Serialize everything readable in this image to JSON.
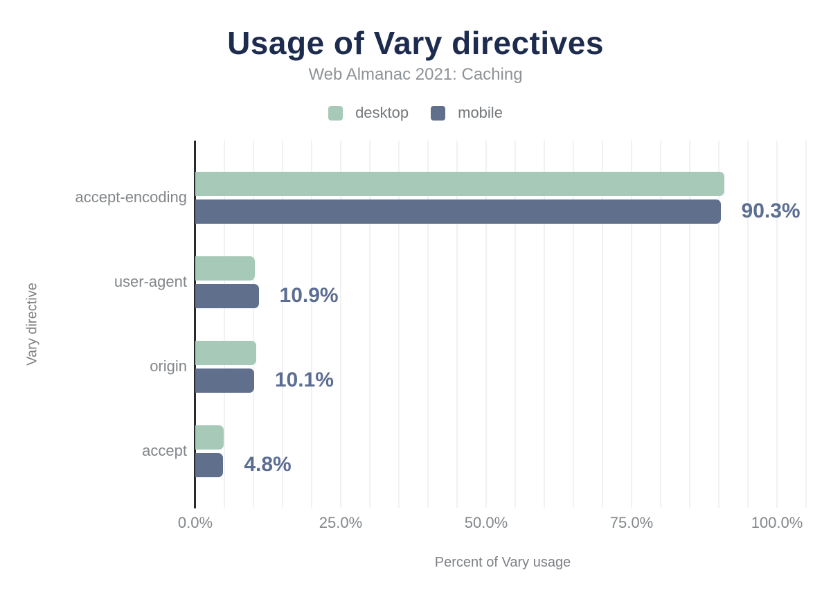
{
  "header": {
    "title": "Usage of Vary directives",
    "subtitle": "Web Almanac 2021: Caching"
  },
  "colors": {
    "desktop": "#a6c9b8",
    "mobile": "#5f6f8c",
    "value_label": "#5b6d92",
    "title": "#1d2c4e",
    "gridline": "#f1f1f3",
    "axis_line": "#27292d"
  },
  "chart_data": {
    "type": "bar",
    "orientation": "horizontal",
    "title": "Usage of Vary directives",
    "subtitle": "Web Almanac 2021: Caching",
    "xlabel": "Percent of Vary usage",
    "ylabel": "Vary directive",
    "categories": [
      "accept-encoding",
      "user-agent",
      "origin",
      "accept"
    ],
    "series": [
      {
        "name": "desktop",
        "color": "#a6c9b8",
        "values": [
          90.9,
          10.2,
          10.5,
          4.9
        ]
      },
      {
        "name": "mobile",
        "color": "#5f6f8c",
        "values": [
          90.3,
          10.9,
          10.1,
          4.8
        ]
      }
    ],
    "data_labels": [
      "90.3%",
      "10.9%",
      "10.1%",
      "4.8%"
    ],
    "data_labels_series": "mobile",
    "x_ticks": [
      "0.0%",
      "25.0%",
      "50.0%",
      "75.0%",
      "100.0%"
    ],
    "x_tick_pcts": [
      0,
      25,
      50,
      75,
      100
    ],
    "xlim": [
      0,
      105
    ],
    "gridline_step_pct": 5,
    "grid": "vertical-only",
    "legend_position": "top-center"
  }
}
